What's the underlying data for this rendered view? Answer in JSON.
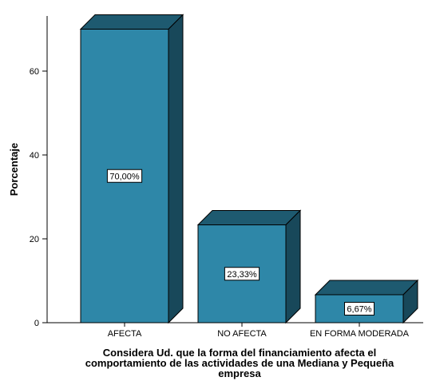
{
  "chart_data": {
    "type": "bar",
    "style": "3d",
    "categories": [
      "AFECTA",
      "NO AFECTA",
      "EN FORMA MODERADA"
    ],
    "values": [
      70.0,
      23.33,
      6.67
    ],
    "data_labels": [
      "70,00%",
      "23,33%",
      "6,67%"
    ],
    "title": "",
    "ylabel": "Porcentaje",
    "xlabel_lines": [
      "Considera Ud. que la forma del financiamiento afecta el",
      "comportamiento de las actividades de una Mediana y Pequeña",
      "empresa"
    ],
    "ylim": [
      0,
      75
    ],
    "yticks": [
      0,
      20,
      40,
      60
    ],
    "ytick_labels": [
      "0",
      "20",
      "40",
      "60"
    ],
    "grid": false,
    "legend": "none",
    "colors": {
      "front": "#2E87A8",
      "top": "#1E5A70",
      "side": "#18485A",
      "stroke": "#000000"
    }
  }
}
